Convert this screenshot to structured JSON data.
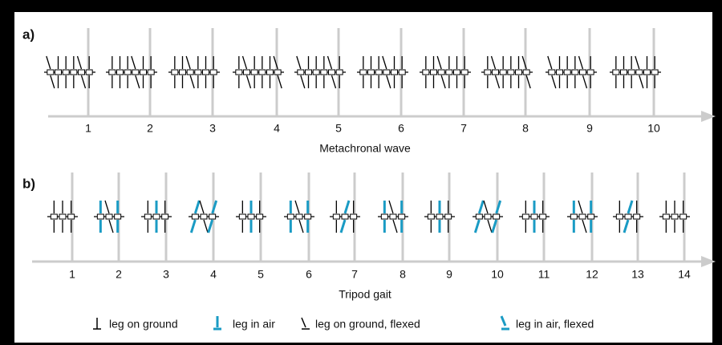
{
  "panel_a": {
    "label": "a)",
    "steps": [
      "1",
      "2",
      "3",
      "4",
      "5",
      "6",
      "7",
      "8",
      "9",
      "10"
    ],
    "caption": "Metachronal wave"
  },
  "panel_b": {
    "label": "b)",
    "steps": [
      "1",
      "2",
      "3",
      "4",
      "5",
      "6",
      "7",
      "8",
      "9",
      "10",
      "11",
      "12",
      "13",
      "14"
    ],
    "caption": "Tripod gait"
  },
  "legend": [
    "leg on ground",
    "leg in air",
    "leg on ground, flexed",
    "leg in air, flexed"
  ]
}
